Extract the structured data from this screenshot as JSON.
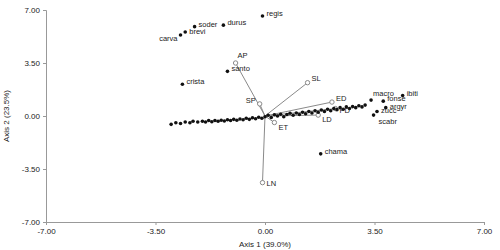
{
  "chart_data": {
    "type": "scatter",
    "x_label": "Axis 1 (39.0%)",
    "y_label": "Axis 2 (23.5%)",
    "xlim": [
      -7,
      7
    ],
    "ylim": [
      -7,
      7
    ],
    "xticks": [
      {
        "value": -7,
        "label": "-7.00"
      },
      {
        "value": -3.5,
        "label": "-3.50"
      },
      {
        "value": 0,
        "label": "0.00"
      },
      {
        "value": 3.5,
        "label": "3.50"
      },
      {
        "value": 7,
        "label": "7.00"
      }
    ],
    "yticks": [
      {
        "value": -7,
        "label": "-7.00"
      },
      {
        "value": -3.5,
        "label": "-3.50"
      },
      {
        "value": 0,
        "label": "0.00"
      },
      {
        "value": 3.5,
        "label": "3.50"
      },
      {
        "value": 7,
        "label": "7.00"
      }
    ],
    "points": {
      "color": "#111111",
      "labels": [
        "brevi",
        "carva",
        "soder",
        "durus",
        "regis",
        "crista",
        "santo",
        "chama",
        "macro",
        "ibiti",
        "fonse",
        "argyr",
        "zucc",
        "scabr",
        null,
        null,
        null,
        null,
        null,
        null,
        null,
        null,
        null,
        null,
        null,
        null,
        null,
        null,
        null,
        null,
        null,
        null,
        null,
        null,
        null,
        null,
        null,
        null,
        null,
        null,
        null,
        null,
        null,
        null,
        null,
        null,
        null,
        null,
        null,
        null,
        null,
        null,
        null,
        null,
        null,
        null,
        null,
        null,
        null,
        null,
        null,
        null,
        null,
        null,
        null,
        null,
        null,
        null,
        null,
        null,
        null,
        null,
        null,
        null
      ],
      "x": [
        -2.55,
        -2.7,
        -2.25,
        -1.33,
        -0.08,
        -2.64,
        -1.2,
        1.78,
        3.39,
        4.4,
        3.78,
        3.86,
        3.58,
        3.47,
        -3.0,
        -2.85,
        -2.7,
        -2.55,
        -2.4,
        -2.3,
        -2.15,
        -2.0,
        -1.9,
        -1.8,
        -1.7,
        -1.6,
        -1.5,
        -1.4,
        -1.3,
        -1.2,
        -1.1,
        -1.0,
        -0.9,
        -0.8,
        -0.7,
        -0.6,
        -0.5,
        -0.4,
        -0.3,
        -0.2,
        -0.1,
        0.0,
        0.1,
        0.2,
        0.3,
        0.4,
        0.5,
        0.6,
        0.7,
        0.8,
        0.9,
        1.0,
        1.1,
        1.2,
        1.3,
        1.4,
        1.5,
        1.6,
        1.7,
        1.8,
        1.9,
        2.0,
        2.1,
        2.2,
        2.3,
        2.4,
        2.5,
        2.6,
        2.7,
        2.8,
        2.9,
        3.0,
        3.1,
        3.2
      ],
      "y": [
        5.55,
        5.35,
        5.9,
        6.0,
        6.6,
        2.1,
        2.95,
        -2.5,
        1.05,
        1.35,
        0.98,
        0.55,
        0.3,
        0.06,
        -0.55,
        -0.45,
        -0.5,
        -0.4,
        -0.45,
        -0.35,
        -0.4,
        -0.35,
        -0.4,
        -0.3,
        -0.38,
        -0.3,
        -0.35,
        -0.28,
        -0.33,
        -0.25,
        -0.3,
        -0.22,
        -0.28,
        -0.2,
        -0.25,
        -0.15,
        -0.22,
        -0.12,
        -0.18,
        -0.08,
        -0.15,
        -0.05,
        0.05,
        -0.1,
        0.08,
        0.0,
        0.12,
        -0.05,
        0.1,
        0.18,
        0.05,
        0.2,
        0.1,
        0.25,
        0.15,
        0.3,
        0.2,
        0.35,
        0.25,
        0.4,
        0.3,
        0.45,
        0.35,
        0.5,
        0.42,
        0.55,
        0.45,
        0.6,
        0.5,
        0.62,
        0.55,
        0.68,
        0.6,
        0.72
      ]
    },
    "vectors": {
      "color": "#8a8a8a",
      "labels": [
        "AP",
        "SL",
        "SP",
        "ED",
        "PD",
        "LD",
        "ET",
        "LN"
      ],
      "x": [
        -0.94,
        1.36,
        -0.17,
        2.14,
        2.25,
        1.7,
        0.3,
        -0.08
      ],
      "y": [
        3.5,
        2.2,
        0.8,
        0.92,
        0.49,
        0.06,
        -0.43,
        -4.4
      ]
    }
  }
}
